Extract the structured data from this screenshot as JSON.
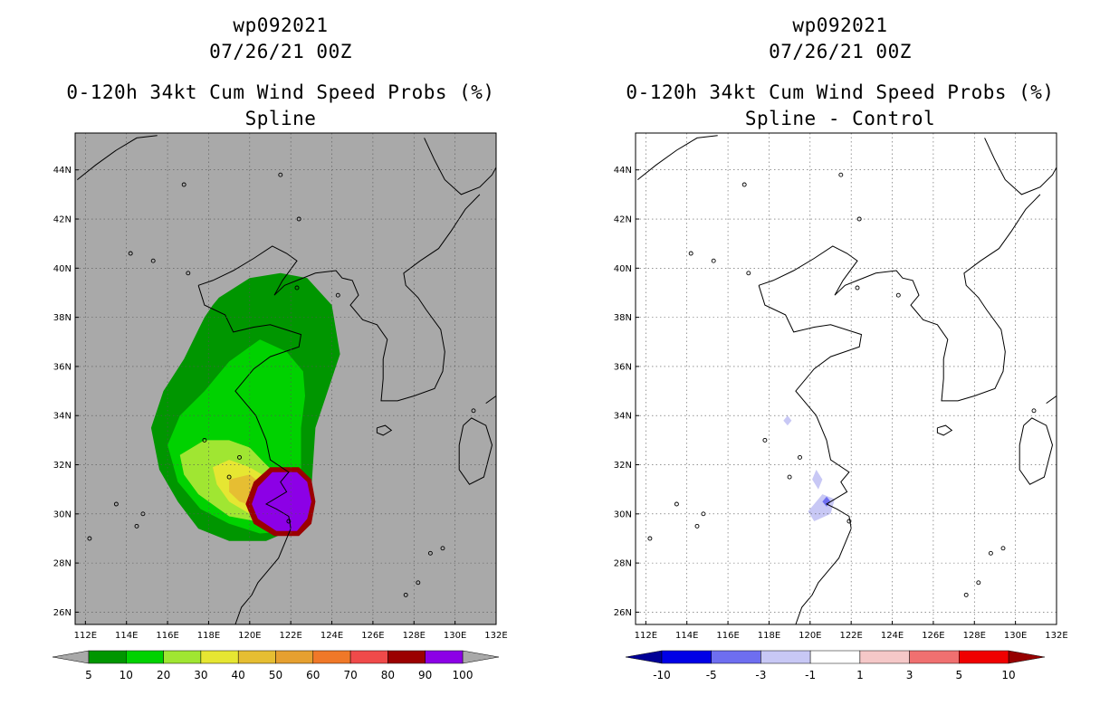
{
  "panels": [
    {
      "id": "probs",
      "title_lines": [
        "wp092021",
        "07/26/21 00Z",
        "0-120h 34kt Cum Wind Speed Probs (%)",
        "Spline"
      ],
      "background": "#a9a9a9"
    },
    {
      "id": "diff",
      "title_lines": [
        "wp092021",
        "07/26/21 00Z",
        "0-120h 34kt Cum Wind Speed Probs (%)",
        "Spline - Control"
      ],
      "background": "#ffffff"
    }
  ],
  "chart_data": [
    {
      "type": "heatmap",
      "title": "0-120h 34kt Cum Wind Speed Probs (%) — Spline",
      "storm": "wp092021",
      "init_time": "07/26/21 00Z",
      "x_ticks": [
        "112E",
        "114E",
        "116E",
        "118E",
        "120E",
        "122E",
        "124E",
        "126E",
        "128E",
        "130E",
        "132E"
      ],
      "y_ticks": [
        "26N",
        "28N",
        "30N",
        "32N",
        "34N",
        "36N",
        "38N",
        "40N",
        "42N",
        "44N"
      ],
      "xlim": [
        111.5,
        132
      ],
      "ylim": [
        25.5,
        45.5
      ],
      "grid": true,
      "colorbar": {
        "labels": [
          "5",
          "10",
          "20",
          "30",
          "40",
          "50",
          "60",
          "70",
          "80",
          "90",
          "100"
        ],
        "colors": [
          "#009600",
          "#00d200",
          "#a0e632",
          "#e6e632",
          "#e6be32",
          "#e6a030",
          "#f07828",
          "#f04a4a",
          "#9b0000",
          "#8c00e6"
        ],
        "underflow_color": "#a9a9a9",
        "overflow_color": "#a9a9a9"
      },
      "regions": [
        {
          "level": 5,
          "lon": [
            118.5,
            120.0,
            121.5,
            122.8,
            124.0,
            124.4,
            123.8,
            123.2,
            123.0,
            122.2,
            120.8,
            119.0,
            117.5,
            116.5,
            115.6,
            115.2,
            115.8,
            116.8,
            117.5,
            117.8,
            118.2
          ],
          "lat": [
            38.8,
            39.6,
            39.8,
            39.6,
            38.5,
            36.5,
            35.0,
            33.5,
            31.0,
            29.4,
            28.9,
            28.9,
            29.4,
            30.5,
            31.8,
            33.5,
            35.0,
            36.3,
            37.5,
            38.0,
            38.5
          ]
        },
        {
          "level": 10,
          "lon": [
            119.0,
            120.5,
            121.8,
            122.6,
            122.7,
            122.5,
            122.5,
            122.0,
            120.5,
            119.0,
            117.6,
            116.5,
            116.0,
            116.6,
            117.8,
            118.6
          ],
          "lat": [
            36.2,
            37.1,
            36.6,
            35.8,
            34.8,
            33.5,
            31.0,
            29.3,
            29.2,
            29.6,
            30.2,
            31.3,
            32.8,
            34.0,
            35.0,
            35.8
          ]
        },
        {
          "level": 20,
          "lon": [
            116.6,
            117.8,
            119.0,
            120.0,
            120.8,
            122.0,
            121.5,
            120.3,
            119.0,
            117.5,
            116.8
          ],
          "lat": [
            32.4,
            33.0,
            33.0,
            32.7,
            32.0,
            31.1,
            30.0,
            29.7,
            29.9,
            30.8,
            31.6
          ]
        },
        {
          "level": 30,
          "lon": [
            118.2,
            119.0,
            120.0,
            121.0,
            121.5,
            121.0,
            120.0,
            119.0,
            118.4
          ],
          "lat": [
            31.9,
            32.2,
            31.9,
            31.4,
            30.8,
            30.2,
            30.0,
            30.5,
            31.2
          ]
        },
        {
          "level": 40,
          "lon": [
            119.0,
            120.0,
            120.6,
            120.8,
            120.3,
            119.5,
            119.0
          ],
          "lat": [
            31.4,
            31.6,
            31.2,
            30.6,
            30.3,
            30.5,
            30.9
          ]
        },
        {
          "level": 80,
          "lon": [
            121.0,
            122.4,
            123.0,
            123.2,
            123.0,
            122.4,
            121.2,
            120.2,
            119.8,
            120.2
          ],
          "lat": [
            31.9,
            31.9,
            31.4,
            30.5,
            29.6,
            29.1,
            29.1,
            29.6,
            30.4,
            31.3
          ]
        },
        {
          "level": 90,
          "lon": [
            121.1,
            122.3,
            122.8,
            123.0,
            122.8,
            122.3,
            121.3,
            120.4,
            120.1,
            120.4
          ],
          "lat": [
            31.7,
            31.7,
            31.3,
            30.5,
            29.8,
            29.3,
            29.3,
            29.8,
            30.4,
            31.1
          ]
        },
        {
          "level": 100,
          "lon": [
            121.2,
            122.2,
            122.7,
            122.8,
            122.6,
            122.1,
            121.4,
            120.6,
            120.4,
            120.6
          ],
          "lat": [
            31.5,
            31.5,
            31.1,
            30.5,
            29.9,
            29.5,
            29.5,
            29.9,
            30.5,
            31.1
          ]
        }
      ]
    },
    {
      "type": "heatmap",
      "title": "0-120h 34kt Cum Wind Speed Probs (%) — Spline - Control",
      "storm": "wp092021",
      "init_time": "07/26/21 00Z",
      "x_ticks": [
        "112E",
        "114E",
        "116E",
        "118E",
        "120E",
        "122E",
        "124E",
        "126E",
        "128E",
        "130E",
        "132E"
      ],
      "y_ticks": [
        "26N",
        "28N",
        "30N",
        "32N",
        "34N",
        "36N",
        "38N",
        "40N",
        "42N",
        "44N"
      ],
      "xlim": [
        111.5,
        132
      ],
      "ylim": [
        25.5,
        45.5
      ],
      "grid": true,
      "colorbar": {
        "labels": [
          "-10",
          "-5",
          "-3",
          "-1",
          "1",
          "3",
          "5",
          "10"
        ],
        "colors": [
          "#0000e6",
          "#6e6ef0",
          "#c8c8f5",
          "#ffffff",
          "#f5c8c8",
          "#f07070",
          "#f00000"
        ],
        "underflow_color": "#000096",
        "overflow_color": "#960000"
      },
      "regions": [
        {
          "level": -3,
          "lon": [
            120.3,
            120.6,
            120.4,
            120.1
          ],
          "lat": [
            31.8,
            31.4,
            31.0,
            31.4
          ]
        },
        {
          "level": -3,
          "lon": [
            120.6,
            121.2,
            121.0,
            120.2,
            119.9
          ],
          "lat": [
            30.8,
            30.6,
            30.0,
            29.7,
            30.1
          ]
        },
        {
          "level": -3,
          "lon": [
            118.9,
            119.1,
            118.9,
            118.7
          ],
          "lat": [
            34.0,
            33.8,
            33.6,
            33.8
          ]
        },
        {
          "level": -5,
          "lon": [
            120.8,
            121.0,
            120.8,
            120.6
          ],
          "lat": [
            30.7,
            30.5,
            30.3,
            30.5
          ]
        }
      ]
    }
  ]
}
